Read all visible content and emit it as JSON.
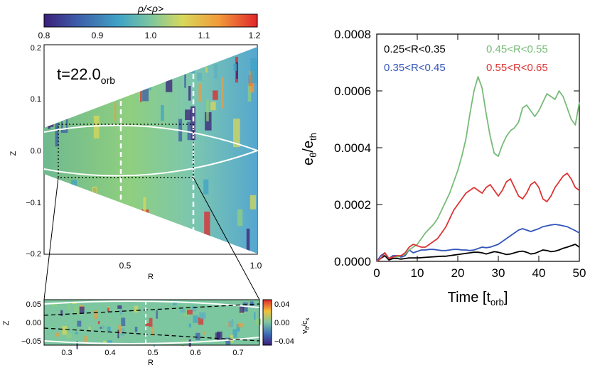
{
  "left_panel": {
    "colorbar": {
      "title": "ρ/<ρ>",
      "ticks": [
        "0.8",
        "0.9",
        "1.0",
        "1.1",
        "1.2"
      ],
      "range": [
        0.8,
        1.2
      ]
    },
    "time_label": "t=22.0",
    "time_unit": "t",
    "time_sub": "orb",
    "xlabel": "R",
    "ylabel": "Z",
    "xticks": [
      "0.5",
      "1.0"
    ],
    "yticks": [
      "0.2",
      "0.1",
      "0.0",
      "−0.1",
      "−0.2"
    ]
  },
  "inset_panel": {
    "xlabel": "R",
    "ylabel": "Z",
    "xticks": [
      "0.3",
      "0.4",
      "0.5",
      "0.6",
      "0.7"
    ],
    "yticks": [
      "0.05",
      "0.00",
      "−0.05"
    ],
    "colorbar": {
      "label_main": "v",
      "label_sub": "θ",
      "label_div": "/c",
      "label_sub2": "s",
      "ticks": [
        "0.04",
        "0.00",
        "−0.04"
      ]
    }
  },
  "chart_data": {
    "type": "line",
    "title": "",
    "xlabel": "Time",
    "xlabel_unit": "t",
    "xlabel_unit_sub": "orb",
    "ylabel_main": "e",
    "ylabel_sub1": "θ",
    "ylabel_sep": "/e",
    "ylabel_sub2": "th",
    "xlim": [
      0,
      50
    ],
    "ylim": [
      0,
      0.0008
    ],
    "xticks": [
      "0",
      "10",
      "20",
      "30",
      "40",
      "50"
    ],
    "yticks": [
      "0.0000",
      "0.0002",
      "0.0004",
      "0.0006",
      "0.0008"
    ],
    "x": [
      0,
      1,
      2,
      3,
      4,
      5,
      6,
      7,
      8,
      9,
      10,
      11,
      12,
      13,
      14,
      15,
      16,
      17,
      18,
      19,
      20,
      21,
      22,
      23,
      24,
      25,
      26,
      27,
      28,
      29,
      30,
      31,
      32,
      33,
      34,
      35,
      36,
      37,
      38,
      39,
      40,
      41,
      42,
      43,
      44,
      45,
      46,
      47,
      48,
      49,
      50
    ],
    "series": [
      {
        "name": "0.25<R<0.35",
        "color": "#000000",
        "values": [
          0,
          1e-05,
          2e-05,
          5e-06,
          1e-05,
          1e-05,
          8e-06,
          1e-05,
          1.2e-05,
          1.2e-05,
          1.2e-05,
          1.3e-05,
          1.4e-05,
          1.5e-05,
          1.6e-05,
          1.7e-05,
          1.8e-05,
          1.8e-05,
          2e-05,
          2.2e-05,
          2.4e-05,
          2.6e-05,
          2.8e-05,
          3e-05,
          3.2e-05,
          3.2e-05,
          3e-05,
          2.6e-05,
          3e-05,
          3.4e-05,
          3.2e-05,
          2.8e-05,
          2.4e-05,
          2.6e-05,
          3e-05,
          3.4e-05,
          3.6e-05,
          3.2e-05,
          2.6e-05,
          2.8e-05,
          3.4e-05,
          4e-05,
          3.8e-05,
          3.4e-05,
          3.6e-05,
          4e-05,
          4.6e-05,
          5e-05,
          5.5e-05,
          6e-05,
          5e-05
        ]
      },
      {
        "name": "0.35<R<0.45",
        "color": "#3355bb",
        "values": [
          0,
          2e-05,
          3e-05,
          1e-05,
          2e-05,
          2e-05,
          1.5e-05,
          2e-05,
          4e-05,
          3e-05,
          3.5e-05,
          4e-05,
          4e-05,
          4.2e-05,
          4.2e-05,
          4e-05,
          3.8e-05,
          3.8e-05,
          4e-05,
          4.2e-05,
          4.2e-05,
          4e-05,
          4e-05,
          3.8e-05,
          4e-05,
          4.5e-05,
          5e-05,
          4.8e-05,
          5e-05,
          5.5e-05,
          6e-05,
          7e-05,
          8e-05,
          9e-05,
          0.0001,
          0.00011,
          0.000115,
          0.00011,
          0.000105,
          0.00011,
          0.000115,
          0.000122,
          0.000125,
          0.000128,
          0.00013,
          0.000128,
          0.000125,
          0.000122,
          0.000115,
          0.000108,
          0.0001
        ]
      },
      {
        "name": "0.45<R<0.55",
        "color": "#77bb77",
        "values": [
          0,
          1e-05,
          3e-05,
          1e-05,
          1.5e-05,
          1.5e-05,
          2e-05,
          2.5e-05,
          4e-05,
          5e-05,
          6e-05,
          8e-05,
          0.0001,
          0.000115,
          0.00013,
          0.00015,
          0.00018,
          0.00021,
          0.00024,
          0.00028,
          0.00032,
          0.00037,
          0.00043,
          0.00052,
          0.0006,
          0.00065,
          0.00061,
          0.00052,
          0.00044,
          0.00038,
          0.00037,
          0.00041,
          0.00044,
          0.00046,
          0.00047,
          0.00049,
          0.00054,
          0.00055,
          0.00053,
          0.00051,
          0.00053,
          0.00056,
          0.00059,
          0.00058,
          0.00057,
          0.0006,
          0.00058,
          0.00054,
          0.0005,
          0.00048,
          0.00056
        ]
      },
      {
        "name": "0.55<R<0.65",
        "color": "#dd3333",
        "values": [
          0,
          1e-05,
          3e-05,
          1e-05,
          1.5e-05,
          2e-05,
          2e-05,
          3e-05,
          5e-05,
          6e-05,
          5.5e-05,
          5e-05,
          5e-05,
          6e-05,
          7e-05,
          8e-05,
          0.0001,
          0.00012,
          0.00015,
          0.00018,
          0.0002,
          0.00022,
          0.00024,
          0.00025,
          0.00026,
          0.00025,
          0.00024,
          0.00026,
          0.00027,
          0.00025,
          0.00023,
          0.00025,
          0.00028,
          0.00029,
          0.00026,
          0.00023,
          0.00022,
          0.00024,
          0.00027,
          0.00028,
          0.00026,
          0.00022,
          0.00021,
          0.00023,
          0.00026,
          0.00028,
          0.0003,
          0.00031,
          0.00029,
          0.00026,
          0.00025
        ]
      }
    ]
  }
}
